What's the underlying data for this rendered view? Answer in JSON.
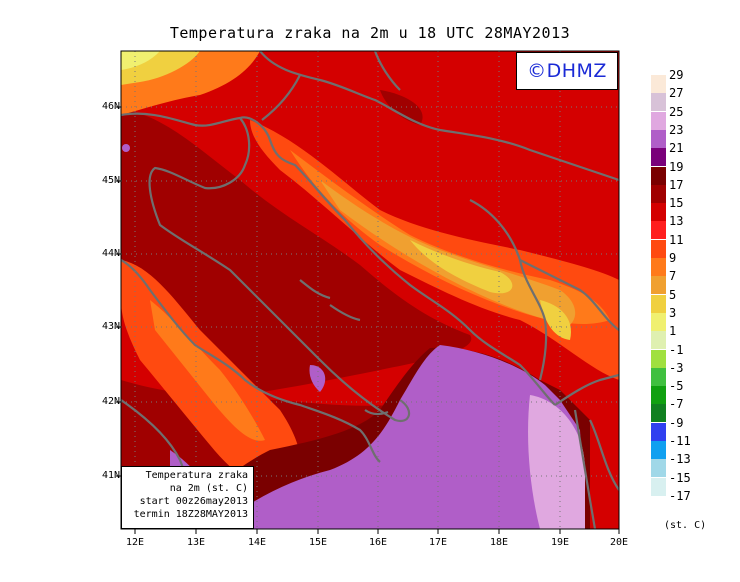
{
  "title": "Temperatura zraka na 2m u 18 UTC 28MAY2013",
  "logo": "©DHMZ",
  "infobox": {
    "line1": "Temperatura zraka",
    "line2": "na 2m (st. C)",
    "line3": "start 00z26may2013",
    "line4": "termin 18Z28MAY2013"
  },
  "lat_labels": [
    "46N",
    "45N",
    "44N",
    "43N",
    "42N",
    "41N"
  ],
  "lon_labels": [
    "12E",
    "13E",
    "14E",
    "15E",
    "16E",
    "17E",
    "18E",
    "19E",
    "20E"
  ],
  "legend": {
    "units": "(st. C)",
    "levels": [
      "29",
      "27",
      "25",
      "23",
      "21",
      "19",
      "17",
      "15",
      "13",
      "11",
      "9",
      "7",
      "5",
      "3",
      "1",
      "-1",
      "-3",
      "-5",
      "-7",
      "-9",
      "-11",
      "-13",
      "-15",
      "-17"
    ],
    "colors": [
      "#fbe9d8",
      "#d8c2d8",
      "#e0a8e0",
      "#b05ec8",
      "#7a007a",
      "#7a0000",
      "#a00000",
      "#d40000",
      "#ff1e1e",
      "#ff4a10",
      "#ff7a1a",
      "#f0a030",
      "#f0d040",
      "#f0f070",
      "#dff0b0",
      "#a0e040",
      "#40c040",
      "#10a010",
      "#108020",
      "#3040f0",
      "#10a0f0",
      "#a0d8e8",
      "#d8f0f0"
    ]
  }
}
